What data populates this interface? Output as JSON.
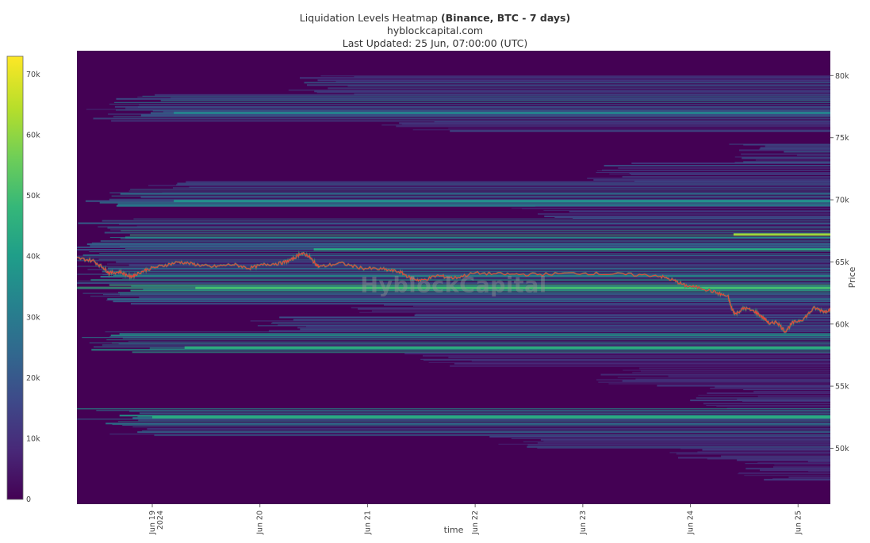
{
  "chart_data": {
    "type": "heatmap",
    "title": "Liquidation Levels Heatmap",
    "title_bold": "(Binance, BTC - 7 days)",
    "subtitle": "hyblockcapital.com",
    "updated": "Last Updated: 25 Jun, 07:00:00 (UTC)",
    "watermark": "HyblockCapital",
    "xlabel": "time",
    "ylabel": "Price",
    "xlim": [
      -0.7,
      6.3
    ],
    "ylim": [
      45500,
      82000
    ],
    "x_ticks": [
      {
        "x": 0,
        "label": "Jun 19",
        "label2": "2024"
      },
      {
        "x": 1,
        "label": "Jun 20",
        "label2": ""
      },
      {
        "x": 2,
        "label": "Jun 21",
        "label2": ""
      },
      {
        "x": 3,
        "label": "Jun 22",
        "label2": ""
      },
      {
        "x": 4,
        "label": "Jun 23",
        "label2": ""
      },
      {
        "x": 5,
        "label": "Jun 24",
        "label2": ""
      },
      {
        "x": 6,
        "label": "Jun 25",
        "label2": ""
      }
    ],
    "y_ticks": [
      {
        "y": 50000,
        "label": "50k"
      },
      {
        "y": 55000,
        "label": "55k"
      },
      {
        "y": 60000,
        "label": "60k"
      },
      {
        "y": 65000,
        "label": "65k"
      },
      {
        "y": 70000,
        "label": "70k"
      },
      {
        "y": 75000,
        "label": "75k"
      },
      {
        "y": 80000,
        "label": "80k"
      }
    ],
    "colorbar": {
      "min": 0,
      "max": 73000,
      "ticks": [
        {
          "v": 0,
          "label": "0"
        },
        {
          "v": 10000,
          "label": "10k"
        },
        {
          "v": 20000,
          "label": "20k"
        },
        {
          "v": 30000,
          "label": "30k"
        },
        {
          "v": 40000,
          "label": "40k"
        },
        {
          "v": 50000,
          "label": "50k"
        },
        {
          "v": 60000,
          "label": "60k"
        },
        {
          "v": 70000,
          "label": "70k"
        }
      ],
      "colors": [
        "#440154",
        "#482878",
        "#3e4989",
        "#31688e",
        "#26828e",
        "#1f9e89",
        "#35b779",
        "#6ece58",
        "#b5de2b",
        "#fde725"
      ]
    },
    "background_color": "#440154",
    "price_line_color": "#e8453c",
    "price_series": [
      {
        "x": -0.7,
        "y": 65300
      },
      {
        "x": -0.55,
        "y": 65100
      },
      {
        "x": -0.45,
        "y": 64500
      },
      {
        "x": -0.4,
        "y": 64100
      },
      {
        "x": -0.3,
        "y": 64200
      },
      {
        "x": -0.2,
        "y": 63800
      },
      {
        "x": -0.15,
        "y": 64000
      },
      {
        "x": -0.05,
        "y": 64400
      },
      {
        "x": 0.1,
        "y": 64700
      },
      {
        "x": 0.25,
        "y": 65000
      },
      {
        "x": 0.4,
        "y": 64800
      },
      {
        "x": 0.55,
        "y": 64600
      },
      {
        "x": 0.75,
        "y": 64800
      },
      {
        "x": 0.9,
        "y": 64500
      },
      {
        "x": 1.05,
        "y": 64800
      },
      {
        "x": 1.2,
        "y": 64900
      },
      {
        "x": 1.3,
        "y": 65200
      },
      {
        "x": 1.38,
        "y": 65700
      },
      {
        "x": 1.45,
        "y": 65500
      },
      {
        "x": 1.5,
        "y": 65000
      },
      {
        "x": 1.55,
        "y": 64600
      },
      {
        "x": 1.75,
        "y": 64900
      },
      {
        "x": 1.95,
        "y": 64500
      },
      {
        "x": 2.15,
        "y": 64400
      },
      {
        "x": 2.3,
        "y": 64200
      },
      {
        "x": 2.4,
        "y": 63700
      },
      {
        "x": 2.5,
        "y": 63500
      },
      {
        "x": 2.65,
        "y": 63900
      },
      {
        "x": 2.8,
        "y": 63700
      },
      {
        "x": 3.0,
        "y": 64100
      },
      {
        "x": 3.3,
        "y": 64000
      },
      {
        "x": 3.6,
        "y": 64000
      },
      {
        "x": 4.0,
        "y": 64100
      },
      {
        "x": 4.35,
        "y": 64000
      },
      {
        "x": 4.7,
        "y": 63900
      },
      {
        "x": 4.85,
        "y": 63500
      },
      {
        "x": 4.95,
        "y": 63100
      },
      {
        "x": 5.1,
        "y": 62900
      },
      {
        "x": 5.25,
        "y": 62500
      },
      {
        "x": 5.35,
        "y": 62200
      },
      {
        "x": 5.38,
        "y": 61300
      },
      {
        "x": 5.42,
        "y": 60800
      },
      {
        "x": 5.5,
        "y": 61300
      },
      {
        "x": 5.6,
        "y": 61000
      },
      {
        "x": 5.68,
        "y": 60500
      },
      {
        "x": 5.74,
        "y": 60000
      },
      {
        "x": 5.8,
        "y": 60200
      },
      {
        "x": 5.88,
        "y": 59400
      },
      {
        "x": 5.95,
        "y": 60100
      },
      {
        "x": 6.05,
        "y": 60400
      },
      {
        "x": 6.15,
        "y": 61300
      },
      {
        "x": 6.25,
        "y": 61000
      },
      {
        "x": 6.3,
        "y": 61200
      }
    ],
    "liquidation_bands": [
      {
        "y_min": 78500,
        "y_max": 80000,
        "x_start": 1.5,
        "intensity": 0.28
      },
      {
        "y_min": 77500,
        "y_max": 78500,
        "x_start": -0.2,
        "intensity": 0.4
      },
      {
        "y_min": 76300,
        "y_max": 77500,
        "x_start": -0.4,
        "intensity": 0.32
      },
      {
        "y_min": 75500,
        "y_max": 76300,
        "x_start": 2.4,
        "intensity": 0.22
      },
      {
        "y_min": 73000,
        "y_max": 74500,
        "x_start": 5.5,
        "intensity": 0.3
      },
      {
        "y_min": 71500,
        "y_max": 73000,
        "x_start": 4.2,
        "intensity": 0.25
      },
      {
        "y_min": 70600,
        "y_max": 71500,
        "x_start": -0.1,
        "intensity": 0.35
      },
      {
        "y_min": 69500,
        "y_max": 70600,
        "x_start": -0.4,
        "intensity": 0.42
      },
      {
        "y_min": 68500,
        "y_max": 69500,
        "x_start": 3.5,
        "intensity": 0.24
      },
      {
        "y_min": 67800,
        "y_max": 68500,
        "x_start": -0.5,
        "intensity": 0.32
      },
      {
        "y_min": 67000,
        "y_max": 67800,
        "x_start": -0.4,
        "intensity": 0.58
      },
      {
        "y_min": 66300,
        "y_max": 67000,
        "x_start": -0.6,
        "intensity": 0.4
      },
      {
        "y_min": 65500,
        "y_max": 66300,
        "x_start": -0.7,
        "intensity": 0.46
      },
      {
        "y_min": 64800,
        "y_max": 65500,
        "x_start": -0.7,
        "intensity": 0.34
      },
      {
        "y_min": 64000,
        "y_max": 64800,
        "x_start": -0.7,
        "intensity": 0.4
      },
      {
        "y_min": 63200,
        "y_max": 64000,
        "x_start": -0.7,
        "intensity": 0.5
      },
      {
        "y_min": 62400,
        "y_max": 63200,
        "x_start": -0.5,
        "intensity": 0.6
      },
      {
        "y_min": 61600,
        "y_max": 62400,
        "x_start": -0.4,
        "intensity": 0.36
      },
      {
        "y_min": 60600,
        "y_max": 61600,
        "x_start": 2.1,
        "intensity": 0.24
      },
      {
        "y_min": 59400,
        "y_max": 60600,
        "x_start": 1.1,
        "intensity": 0.3
      },
      {
        "y_min": 58500,
        "y_max": 59400,
        "x_start": -0.55,
        "intensity": 0.48
      },
      {
        "y_min": 57700,
        "y_max": 58500,
        "x_start": -0.4,
        "intensity": 0.55
      },
      {
        "y_min": 56500,
        "y_max": 57700,
        "x_start": 2.6,
        "intensity": 0.22
      },
      {
        "y_min": 55000,
        "y_max": 56500,
        "x_start": 4.3,
        "intensity": 0.2
      },
      {
        "y_min": 53200,
        "y_max": 55000,
        "x_start": 5.2,
        "intensity": 0.22
      },
      {
        "y_min": 52000,
        "y_max": 53200,
        "x_start": -0.5,
        "intensity": 0.52
      },
      {
        "y_min": 51000,
        "y_max": 52000,
        "x_start": -0.35,
        "intensity": 0.42
      },
      {
        "y_min": 50000,
        "y_max": 51000,
        "x_start": 3.2,
        "intensity": 0.25
      },
      {
        "y_min": 49000,
        "y_max": 50000,
        "x_start": 5.0,
        "intensity": 0.22
      },
      {
        "y_min": 47500,
        "y_max": 49000,
        "x_start": 5.6,
        "intensity": 0.2
      }
    ],
    "highlight_bands": [
      {
        "y": 67200,
        "x_start": 5.4,
        "intensity": 0.85
      },
      {
        "y": 62900,
        "x_start": 0.4,
        "intensity": 0.7
      },
      {
        "y": 58100,
        "x_start": 0.3,
        "intensity": 0.62
      },
      {
        "y": 52500,
        "x_start": 0.0,
        "intensity": 0.62
      },
      {
        "y": 66000,
        "x_start": 1.5,
        "intensity": 0.6
      },
      {
        "y": 69900,
        "x_start": 0.2,
        "intensity": 0.5
      },
      {
        "y": 77000,
        "x_start": 0.2,
        "intensity": 0.45
      }
    ]
  }
}
